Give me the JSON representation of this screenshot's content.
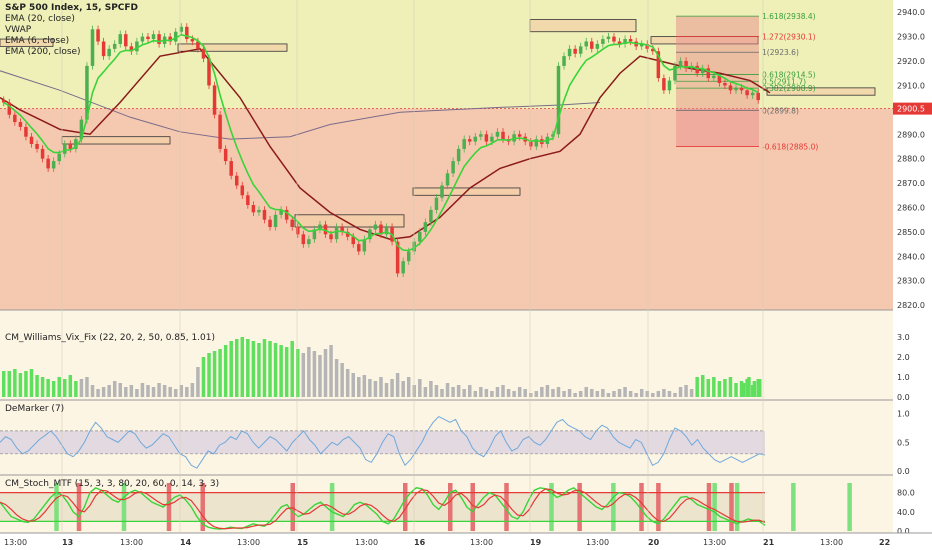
{
  "header": {
    "symbol_line": "S&P 500 Index, 15, SPCFD",
    "indicators": [
      "EMA (20, close)",
      "VWAP",
      "EMA (6, close)",
      "EMA (200, close)"
    ]
  },
  "panels": {
    "williams_title": "CM_Williams_Vix_Fix (22, 20, 2, 50, 0.85, 1.01)",
    "demarker_title": "DeMarker (7)",
    "stoch_title": "CM_Stoch_MTF (15, 3, 3, 80, 20, 60, 0, 14, 3, 3)"
  },
  "colors": {
    "bull": "#4caf50",
    "bear": "#e53935",
    "ema6": "#39d439",
    "ema200": "#8b1a1a",
    "vwap": "#7a6a8a",
    "upper_zone": "#eef0b8",
    "lower_zone": "#f5c9b0"
  },
  "chart_data": {
    "type": "candlestick",
    "price_axis": {
      "ticks": [
        "2940.0",
        "2930.0",
        "2920.0",
        "2910.0",
        "2900.0",
        "2890.0",
        "2880.0",
        "2870.0",
        "2860.0",
        "2850.0",
        "2840.0",
        "2830.0",
        "2820.0"
      ],
      "ylim": [
        2818,
        2945
      ],
      "current_price": "2900.5"
    },
    "time_axis": {
      "labels": [
        "13:00",
        "13",
        "13:00",
        "14",
        "13:00",
        "15",
        "13:00",
        "16",
        "13:00",
        "19",
        "13:00",
        "20",
        "13:00",
        "21",
        "13:00",
        "22"
      ]
    },
    "closes": [
      2903,
      2898,
      2895,
      2893,
      2889,
      2886,
      2884,
      2880,
      2876,
      2879,
      2882,
      2886,
      2884,
      2888,
      2896,
      2918,
      2933,
      2928,
      2922,
      2925,
      2927,
      2931,
      2926,
      2924,
      2928,
      2930,
      2929,
      2931,
      2927,
      2930,
      2928,
      2932,
      2934,
      2929,
      2928,
      2925,
      2921,
      2910,
      2898,
      2884,
      2879,
      2873,
      2869,
      2865,
      2861,
      2858,
      2859,
      2855,
      2852,
      2857,
      2859,
      2855,
      2852,
      2849,
      2845,
      2847,
      2851,
      2853,
      2849,
      2847,
      2852,
      2850,
      2848,
      2845,
      2842,
      2847,
      2851,
      2853,
      2849,
      2852,
      2846,
      2833,
      2838,
      2842,
      2846,
      2850,
      2854,
      2859,
      2864,
      2869,
      2874,
      2879,
      2884,
      2888,
      2887,
      2889,
      2890,
      2887,
      2889,
      2891,
      2888,
      2887,
      2890,
      2889,
      2887,
      2885,
      2888,
      2886,
      2889,
      2890,
      2918,
      2922,
      2925,
      2923,
      2926,
      2928,
      2925,
      2927,
      2929,
      2930,
      2928,
      2927,
      2929,
      2928,
      2926,
      2927,
      2925,
      2924,
      2913,
      2908,
      2912,
      2918,
      2920,
      2917,
      2918,
      2915,
      2917,
      2913,
      2914,
      2911,
      2910,
      2908,
      2909,
      2908,
      2906,
      2907,
      2904
    ],
    "vwap_points": [
      [
        0,
        2916
      ],
      [
        60,
        2908
      ],
      [
        130,
        2897
      ],
      [
        180,
        2891
      ],
      [
        230,
        2888
      ],
      [
        290,
        2889
      ],
      [
        330,
        2894
      ],
      [
        400,
        2899
      ],
      [
        500,
        2901
      ],
      [
        560,
        2902
      ],
      [
        600,
        2903
      ]
    ],
    "ema200_points": [
      [
        0,
        2905
      ],
      [
        20,
        2900
      ],
      [
        60,
        2892
      ],
      [
        90,
        2890
      ],
      [
        120,
        2903
      ],
      [
        160,
        2922
      ],
      [
        200,
        2925
      ],
      [
        240,
        2905
      ],
      [
        270,
        2885
      ],
      [
        300,
        2868
      ],
      [
        330,
        2858
      ],
      [
        360,
        2851
      ],
      [
        390,
        2847
      ],
      [
        410,
        2848
      ],
      [
        440,
        2856
      ],
      [
        470,
        2868
      ],
      [
        500,
        2876
      ],
      [
        530,
        2880
      ],
      [
        560,
        2883
      ],
      [
        580,
        2890
      ],
      [
        600,
        2905
      ],
      [
        620,
        2915
      ],
      [
        640,
        2922
      ],
      [
        660,
        2920
      ],
      [
        690,
        2917
      ],
      [
        720,
        2915
      ],
      [
        750,
        2912
      ],
      [
        770,
        2907
      ]
    ],
    "fib_levels": [
      {
        "ratio": "1.618",
        "price": "2938.4",
        "value": 2938.4,
        "color": "#3a9e3a"
      },
      {
        "ratio": "1.272",
        "price": "2930.1",
        "value": 2930.1,
        "color": "#e53935"
      },
      {
        "ratio": "1",
        "price": "2923.6",
        "value": 2923.6,
        "color": "#6a6a6a"
      },
      {
        "ratio": "0.618",
        "price": "2914.5",
        "value": 2914.5,
        "color": "#3a9e3a"
      },
      {
        "ratio": "0.5",
        "price": "2911.7",
        "value": 2911.7,
        "color": "#3a9e3a"
      },
      {
        "ratio": "0.382",
        "price": "2908.9",
        "value": 2908.9,
        "color": "#3a9e3a"
      },
      {
        "ratio": "0",
        "price": "2899.8",
        "value": 2899.8,
        "color": "#6a6a6a"
      },
      {
        "ratio": "-0.618",
        "price": "2885.0",
        "value": 2885.0,
        "color": "#e53935"
      }
    ],
    "sr_zones": [
      {
        "from": 0,
        "to": 53,
        "top": 2929,
        "bottom": 2926
      },
      {
        "from": 178,
        "to": 287,
        "top": 2927,
        "bottom": 2924
      },
      {
        "from": 62,
        "to": 170,
        "top": 2889,
        "bottom": 2886
      },
      {
        "from": 295,
        "to": 404,
        "top": 2857,
        "bottom": 2852
      },
      {
        "from": 413,
        "to": 520,
        "top": 2868,
        "bottom": 2865
      },
      {
        "from": 530,
        "to": 636,
        "top": 2937,
        "bottom": 2932
      },
      {
        "from": 651,
        "to": 758,
        "top": 2930,
        "bottom": 2927
      },
      {
        "from": 767,
        "to": 875,
        "top": 2909,
        "bottom": 2906
      }
    ],
    "williams": {
      "ticks": [
        "3.0",
        "2.0",
        "1.0",
        "0.0"
      ],
      "ylim": [
        0,
        3.2
      ],
      "values": [
        1.3,
        1.3,
        1.4,
        1.2,
        1.3,
        1.4,
        1.1,
        1.0,
        0.9,
        0.8,
        1.0,
        0.9,
        1.1,
        0.8,
        0.9,
        1.0,
        0.6,
        0.4,
        0.5,
        0.6,
        0.8,
        0.7,
        0.5,
        0.6,
        0.4,
        0.7,
        0.6,
        0.5,
        0.7,
        0.6,
        0.5,
        0.4,
        0.6,
        0.5,
        0.7,
        1.5,
        2.0,
        2.2,
        2.3,
        2.4,
        2.6,
        2.8,
        2.9,
        3.0,
        2.9,
        2.8,
        2.7,
        2.9,
        2.8,
        2.7,
        2.6,
        2.5,
        2.8,
        2.4,
        2.2,
        2.5,
        2.3,
        2.1,
        2.4,
        2.6,
        1.9,
        1.7,
        1.4,
        1.2,
        1.0,
        1.1,
        0.9,
        0.8,
        1.0,
        0.7,
        0.9,
        1.2,
        0.8,
        1.0,
        0.6,
        0.9,
        0.5,
        0.8,
        0.6,
        0.4,
        0.7,
        0.5,
        0.6,
        0.4,
        0.6,
        0.3,
        0.5,
        0.4,
        0.3,
        0.5,
        0.6,
        0.4,
        0.3,
        0.5,
        0.4,
        0.2,
        0.3,
        0.5,
        0.6,
        0.4,
        0.5,
        0.3,
        0.4,
        0.2,
        0.3,
        0.5,
        0.4,
        0.3,
        0.4,
        0.2,
        0.3,
        0.4,
        0.5,
        0.3,
        0.2,
        0.4,
        0.3,
        0.2,
        0.3,
        0.4,
        0.3,
        0.2,
        0.5,
        0.6,
        0.4,
        1.0,
        1.1,
        0.9,
        1.0,
        0.8,
        0.9,
        1.0,
        0.7,
        0.8,
        0.9,
        0.6,
        0.9,
        0.7,
        1.0,
        0.8,
        0.9
      ],
      "bright_ranges": [
        [
          0,
          13
        ],
        [
          36,
          53
        ],
        [
          125,
          140
        ]
      ]
    },
    "demarker": {
      "ticks": [
        "1.0",
        "0.5",
        "0.0"
      ],
      "ylim": [
        0,
        1.1
      ],
      "upper": 0.7,
      "lower": 0.3,
      "values": [
        0.5,
        0.6,
        0.55,
        0.4,
        0.3,
        0.35,
        0.45,
        0.55,
        0.62,
        0.7,
        0.6,
        0.45,
        0.3,
        0.25,
        0.35,
        0.5,
        0.7,
        0.85,
        0.75,
        0.6,
        0.55,
        0.5,
        0.6,
        0.7,
        0.65,
        0.5,
        0.4,
        0.45,
        0.55,
        0.65,
        0.6,
        0.45,
        0.3,
        0.25,
        0.1,
        0.05,
        0.2,
        0.35,
        0.3,
        0.45,
        0.5,
        0.6,
        0.55,
        0.7,
        0.65,
        0.5,
        0.4,
        0.5,
        0.6,
        0.55,
        0.45,
        0.35,
        0.5,
        0.6,
        0.7,
        0.55,
        0.45,
        0.3,
        0.4,
        0.5,
        0.45,
        0.55,
        0.6,
        0.5,
        0.4,
        0.2,
        0.15,
        0.3,
        0.5,
        0.65,
        0.6,
        0.3,
        0.1,
        0.2,
        0.35,
        0.5,
        0.7,
        0.85,
        0.95,
        0.9,
        0.85,
        0.9,
        0.7,
        0.6,
        0.4,
        0.3,
        0.25,
        0.4,
        0.6,
        0.7,
        0.5,
        0.35,
        0.4,
        0.55,
        0.6,
        0.5,
        0.45,
        0.55,
        0.7,
        0.85,
        0.9,
        0.8,
        0.75,
        0.7,
        0.6,
        0.55,
        0.7,
        0.8,
        0.75,
        0.6,
        0.5,
        0.45,
        0.4,
        0.55,
        0.5,
        0.3,
        0.1,
        0.15,
        0.3,
        0.55,
        0.75,
        0.7,
        0.6,
        0.45,
        0.55,
        0.4,
        0.3,
        0.2,
        0.15,
        0.2,
        0.25,
        0.2,
        0.15,
        0.2,
        0.25,
        0.3,
        0.28
      ]
    },
    "stoch": {
      "ticks": [
        "80.0",
        "40.0",
        "0.0"
      ],
      "ylim": [
        0,
        100
      ],
      "upper": 80,
      "lower": 20,
      "k": [
        60,
        45,
        30,
        25,
        20,
        18,
        25,
        40,
        55,
        70,
        80,
        75,
        60,
        40,
        30,
        50,
        80,
        90,
        85,
        75,
        65,
        60,
        70,
        80,
        85,
        80,
        70,
        60,
        55,
        50,
        60,
        70,
        75,
        65,
        50,
        30,
        15,
        8,
        5,
        4,
        5,
        8,
        6,
        5,
        10,
        15,
        12,
        10,
        20,
        35,
        50,
        55,
        40,
        30,
        35,
        45,
        55,
        60,
        50,
        40,
        35,
        30,
        40,
        55,
        60,
        55,
        45,
        35,
        20,
        15,
        25,
        45,
        65,
        80,
        90,
        88,
        75,
        55,
        45,
        60,
        80,
        85,
        70,
        50,
        40,
        55,
        70,
        80,
        75,
        60,
        45,
        30,
        25,
        40,
        65,
        85,
        90,
        88,
        80,
        70,
        75,
        85,
        90,
        80,
        70,
        60,
        50,
        45,
        55,
        70,
        80,
        78,
        72,
        60,
        45,
        30,
        20,
        15,
        25,
        40,
        55,
        70,
        72,
        65,
        55,
        50,
        45,
        40,
        30,
        25,
        20,
        15,
        20,
        25,
        22,
        20,
        12
      ],
      "red_bars": [
        14,
        30,
        36,
        52,
        72,
        80,
        84,
        90,
        103,
        114,
        117,
        126,
        130
      ],
      "green_bars": [
        10,
        22,
        59,
        98,
        109,
        127,
        131,
        141,
        151
      ]
    }
  }
}
